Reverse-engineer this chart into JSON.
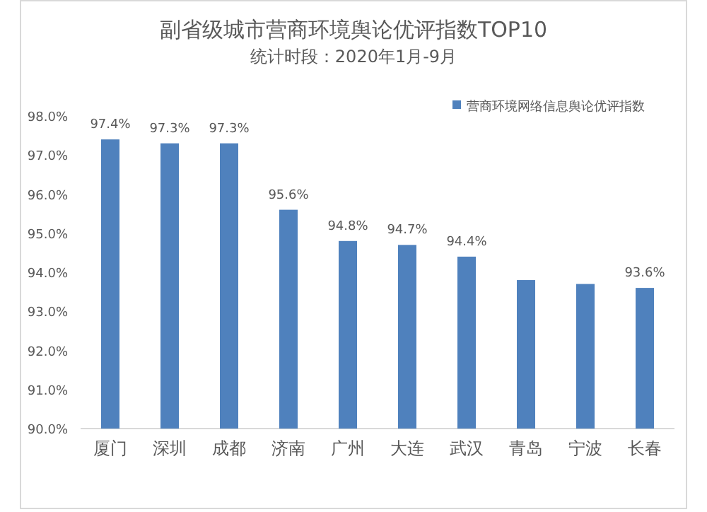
{
  "chart_data": {
    "type": "bar",
    "title": "副省级城市营商环境舆论优评指数TOP10",
    "subtitle": "统计时段：2020年1月-9月",
    "categories": [
      "厦门",
      "深圳",
      "成都",
      "济南",
      "广州",
      "大连",
      "武汉",
      "青岛",
      "宁波",
      "长春"
    ],
    "series": [
      {
        "name": "营商环境网络信息舆论优评指数",
        "color": "#4f81bd",
        "values": [
          97.4,
          97.3,
          97.3,
          95.6,
          94.8,
          94.7,
          94.4,
          93.8,
          93.7,
          93.6
        ],
        "value_labels": [
          "97.4%",
          "97.3%",
          "97.3%",
          "95.6%",
          "94.8%",
          "94.7%",
          "94.4%",
          null,
          null,
          "93.6%"
        ]
      }
    ],
    "ylim": [
      90,
      98
    ],
    "yticks": [
      {
        "value": 90,
        "label": "90.0%"
      },
      {
        "value": 91,
        "label": "91.0%"
      },
      {
        "value": 92,
        "label": "92.0%"
      },
      {
        "value": 93,
        "label": "93.0%"
      },
      {
        "value": 94,
        "label": "94.0%"
      },
      {
        "value": 95,
        "label": "95.0%"
      },
      {
        "value": 96,
        "label": "96.0%"
      },
      {
        "value": 97,
        "label": "97.0%"
      },
      {
        "value": 98,
        "label": "98.0%"
      }
    ],
    "grid": false,
    "legend": "top right"
  }
}
